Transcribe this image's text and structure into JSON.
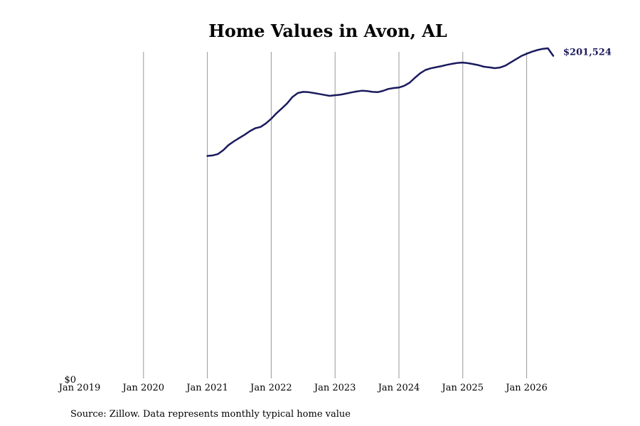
{
  "chart_data": {
    "type": "line",
    "title": "Home Values in Avon, AL",
    "source": "Source: Zillow. Data represents monthly typical home value",
    "y_tick_label": "$0",
    "end_label": "$201,524",
    "x_tick_labels": [
      "Jan 2019",
      "Jan 2020",
      "Jan 2021",
      "Jan 2022",
      "Jan 2023",
      "Jan 2024",
      "Jan 2025",
      "Jan 2026"
    ],
    "xlim": [
      "2019-01",
      "2026-07"
    ],
    "ylim": [
      0,
      204000
    ],
    "grid": "vertical lines at each January",
    "line_color": "#1a1a5e",
    "grid_color": "#999999",
    "series": [
      {
        "x": [
          "2021-01",
          "2021-02",
          "2021-03",
          "2021-04",
          "2021-05",
          "2021-06",
          "2021-07",
          "2021-08",
          "2021-09",
          "2021-10",
          "2021-11",
          "2021-12",
          "2022-01",
          "2022-02",
          "2022-03",
          "2022-04",
          "2022-05",
          "2022-06",
          "2022-07",
          "2022-08",
          "2022-09",
          "2022-10",
          "2022-11",
          "2022-12",
          "2023-01",
          "2023-02",
          "2023-03",
          "2023-04",
          "2023-05",
          "2023-06",
          "2023-07",
          "2023-08",
          "2023-09",
          "2023-10",
          "2023-11",
          "2023-12",
          "2024-01",
          "2024-02",
          "2024-03",
          "2024-04",
          "2024-05",
          "2024-06",
          "2024-07",
          "2024-08",
          "2024-09",
          "2024-10",
          "2024-11",
          "2024-12",
          "2025-01",
          "2025-02",
          "2025-03",
          "2025-04",
          "2025-05",
          "2025-06",
          "2025-07",
          "2025-08",
          "2025-09",
          "2025-10",
          "2025-11",
          "2025-12",
          "2026-01",
          "2026-02",
          "2026-03",
          "2026-04",
          "2026-05",
          "2026-06"
        ],
        "values": [
          139000,
          139300,
          140200,
          142600,
          145800,
          148100,
          150200,
          152200,
          154500,
          156300,
          157100,
          159300,
          162200,
          165700,
          168700,
          171800,
          175800,
          178300,
          179000,
          178800,
          178300,
          177700,
          177100,
          176500,
          176900,
          177200,
          177900,
          178600,
          179200,
          179700,
          179500,
          179000,
          178800,
          179600,
          180800,
          181400,
          181700,
          182800,
          184700,
          187800,
          190600,
          192700,
          193700,
          194400,
          195100,
          195900,
          196500,
          197100,
          197300,
          196900,
          196300,
          195600,
          194700,
          194300,
          193800,
          194200,
          195400,
          197400,
          199400,
          201400,
          202800,
          204100,
          205100,
          205800,
          206200,
          201524
        ]
      }
    ]
  }
}
